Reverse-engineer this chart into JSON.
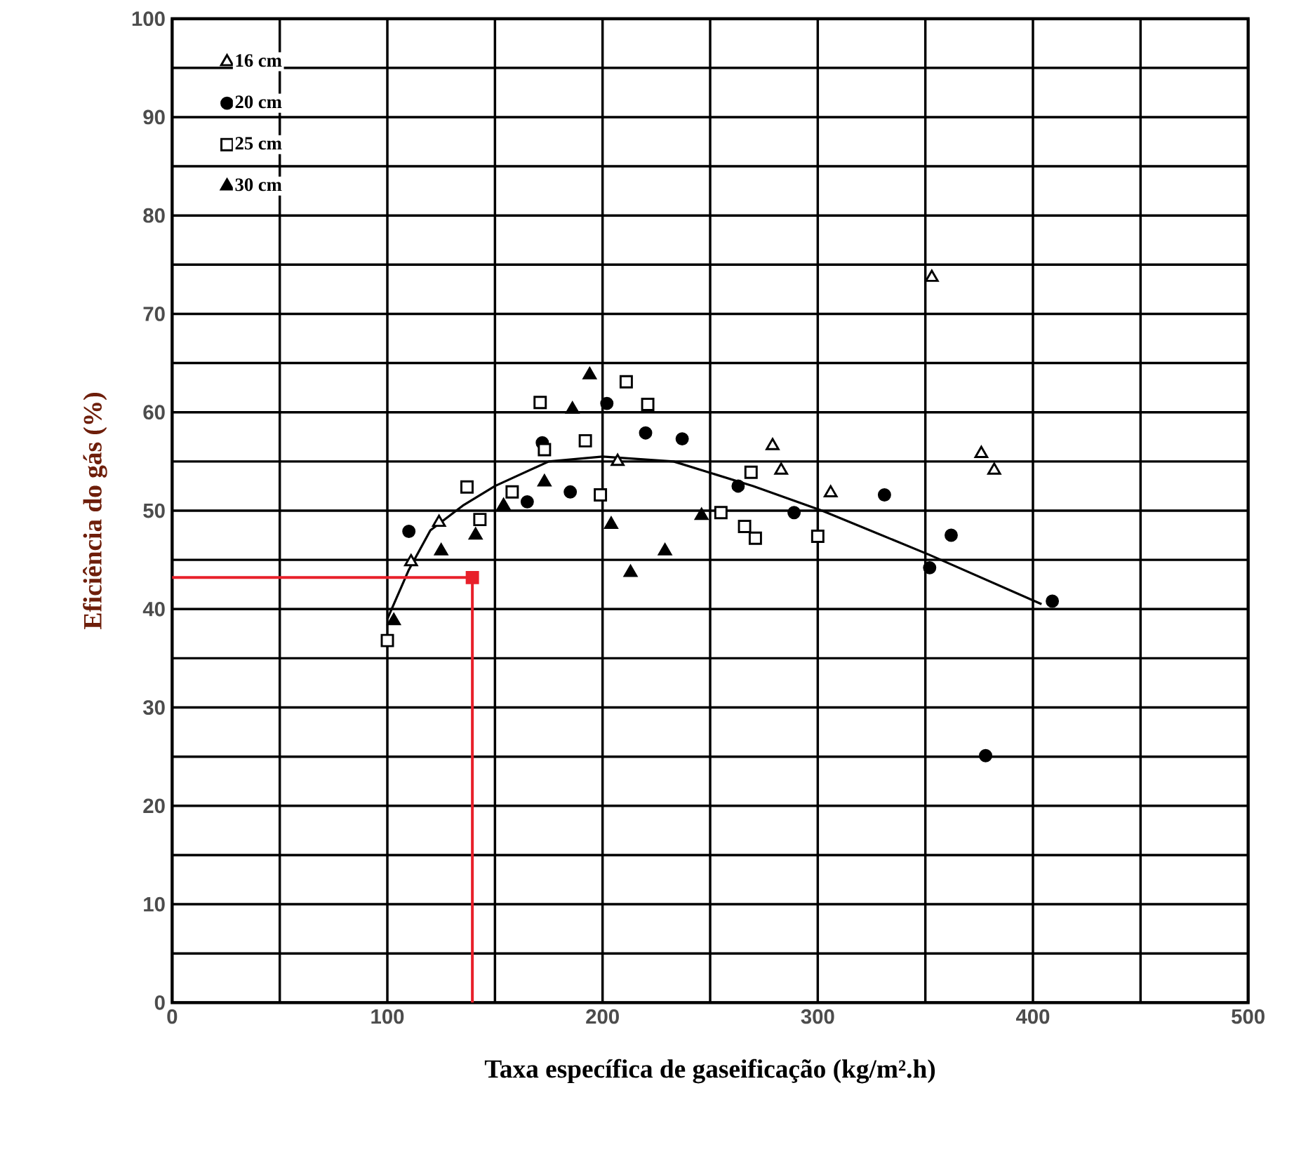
{
  "chart_data": {
    "type": "scatter",
    "xlabel": "Taxa específica de gaseificação (kg/m².h)",
    "ylabel": "Eficiência do gás (%)",
    "xlim": [
      0,
      500
    ],
    "ylim": [
      0,
      100
    ],
    "xticks": [
      0,
      {
        "value": 50,
        "label": null
      },
      100,
      {
        "value": 150,
        "label": null
      },
      200,
      {
        "value": 250,
        "label": null
      },
      300,
      {
        "value": 350,
        "label": null
      },
      400,
      {
        "value": 450,
        "label": null
      },
      500
    ],
    "yticks": [
      0,
      {
        "value": 5,
        "label": null
      },
      10,
      {
        "value": 15,
        "label": null
      },
      20,
      {
        "value": 25,
        "label": null
      },
      30,
      {
        "value": 35,
        "label": null
      },
      40,
      {
        "value": 45,
        "label": null
      },
      50,
      {
        "value": 55,
        "label": null
      },
      60,
      {
        "value": 65,
        "label": null
      },
      70,
      {
        "value": 75,
        "label": null
      },
      80,
      {
        "value": 85,
        "label": null
      },
      90,
      {
        "value": 95,
        "label": null
      },
      100
    ],
    "grid": true,
    "legend": "top left",
    "series": [
      {
        "name": "16 cm",
        "marker": "triangle-open",
        "color": "#000000",
        "x": [
          353,
          376,
          382,
          279,
          283,
          306,
          207,
          111,
          124
        ],
        "values": [
          73.7,
          55.8,
          54.1,
          56.6,
          54.1,
          51.8,
          55,
          44.8,
          48.8
        ]
      },
      {
        "name": "20 cm",
        "marker": "circle",
        "color": "#000000",
        "x": [
          110,
          202,
          220,
          237,
          185,
          165,
          263,
          289,
          331,
          352,
          362,
          409,
          378,
          172
        ],
        "values": [
          47.9,
          60.9,
          57.9,
          57.3,
          51.9,
          50.9,
          52.5,
          49.8,
          51.6,
          44.2,
          47.5,
          40.8,
          25.1,
          56.9
        ]
      },
      {
        "name": "25 cm",
        "marker": "square-open",
        "color": "#000000",
        "x": [
          100,
          137,
          158,
          171,
          211,
          221,
          199,
          192,
          173,
          255,
          266,
          271,
          300,
          269,
          143
        ],
        "values": [
          36.8,
          52.4,
          51.9,
          61,
          63.1,
          60.8,
          51.6,
          57.1,
          56.2,
          49.8,
          48.4,
          47.2,
          47.4,
          53.9,
          49.1
        ]
      },
      {
        "name": "30 cm",
        "marker": "triangle",
        "color": "#000000",
        "x": [
          103,
          125,
          141,
          194,
          186,
          204,
          213,
          229,
          246,
          173,
          154
        ],
        "values": [
          38.8,
          45.9,
          47.5,
          63.8,
          60.3,
          48.6,
          43.7,
          45.9,
          49.5,
          52.9,
          50.5
        ]
      },
      {
        "type": "line",
        "marker": "none",
        "color": "#000000",
        "x": [
          100,
          110,
          120,
          135,
          150,
          175,
          200,
          233,
          270,
          302,
          352,
          404
        ],
        "values": [
          39,
          44,
          48,
          50.5,
          52.5,
          55,
          55.5,
          55,
          52.5,
          50,
          45.5,
          40.5
        ]
      },
      {
        "type": "line",
        "marker": "none",
        "color": "#e8202a",
        "x": [
          0,
          139.5,
          139.5
        ],
        "values": [
          43.2,
          43.2,
          0
        ]
      },
      {
        "marker": "square",
        "color": "#e8202a",
        "x": [
          139.5
        ],
        "values": [
          43.2
        ]
      }
    ]
  }
}
